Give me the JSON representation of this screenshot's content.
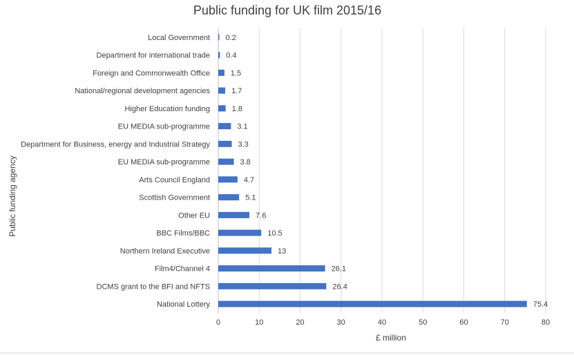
{
  "chart_data": {
    "type": "bar",
    "orientation": "horizontal",
    "title": "Public funding for UK film 2015/16",
    "xlabel": "£ million",
    "ylabel": "Public funding agency",
    "xlim": [
      0,
      80
    ],
    "x_ticks": [
      "0",
      "10",
      "20",
      "30",
      "40",
      "50",
      "60",
      "70",
      "80"
    ],
    "grid": true,
    "legend": "none",
    "bar_color": "#4472c4",
    "categories": [
      "Local Government",
      "Department for international trade",
      "Foreign and Commonwealth Office",
      "National/regional development agencies",
      "Higher Education funding",
      "EU MEDIA sub-programme",
      "Department for Business, energy and Industrial Strategy",
      "EU MEDIA sub-programme",
      "Arts Council England",
      "Scottish Government",
      "Other EU",
      "BBC Films/BBC",
      "Northern Ireland Executive",
      "Film4/Channel 4",
      "DCMS grant to the BFI and NFTS",
      "National Lottery"
    ],
    "values": [
      0.2,
      0.4,
      1.5,
      1.7,
      1.8,
      3.1,
      3.3,
      3.8,
      4.7,
      5.1,
      7.6,
      10.5,
      13,
      26.1,
      26.4,
      75.4
    ],
    "data_labels": [
      "0.2",
      "0.4",
      "1.5",
      "1.7",
      "1.8",
      "3.1",
      "3.3",
      "3.8",
      "4.7",
      "5.1",
      "7.6",
      "10.5",
      "13",
      "26.1",
      "26.4",
      "75.4"
    ]
  }
}
